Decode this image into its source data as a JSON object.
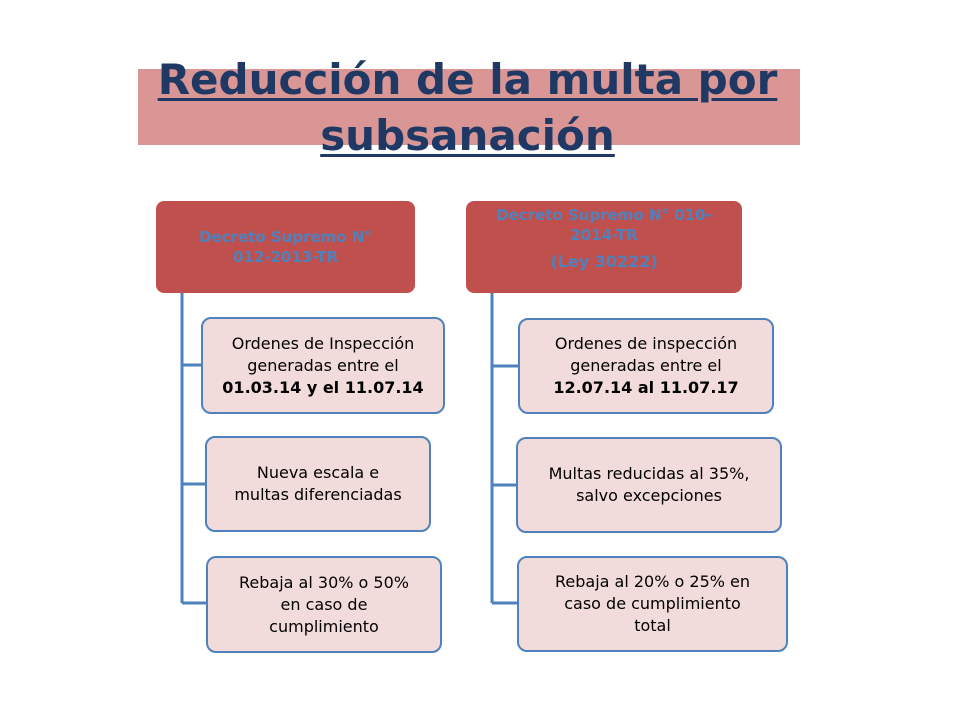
{
  "title": {
    "line1": "Reducción de la multa por",
    "line2": "subsanación"
  },
  "left": {
    "header": {
      "line1": "Decreto Supremo N°",
      "line2": "012-2013-TR"
    },
    "boxes": [
      {
        "line1": "Ordenes de Inspección",
        "line2": "generadas entre el",
        "line3": "01.03.14 y el 11.07.14"
      },
      {
        "line1": "Nueva escala e",
        "line2": "multas diferenciadas"
      },
      {
        "line1": "Rebaja al 30% o 50%",
        "line2": "en caso de",
        "line3": "cumplimiento"
      }
    ]
  },
  "right": {
    "header": {
      "line1": "Decreto Supremo N° 010-",
      "line2": "2014-TR",
      "line3": "(Ley 30222)"
    },
    "boxes": [
      {
        "line1": "Ordenes de inspección",
        "line2": "generadas entre el",
        "line3": "12.07.14 al 11.07.17"
      },
      {
        "line1": "Multas reducidas al 35%,",
        "line2": "salvo excepciones"
      },
      {
        "line1": "Rebaja al 20% o 25% en",
        "line2": "caso de cumplimiento",
        "line3": "total"
      }
    ]
  },
  "colors": {
    "title_band": "#d99694",
    "title_text": "#1f3864",
    "header_fill": "#c0504d",
    "header_text": "#4f81bd",
    "box_fill": "#f2dcdb",
    "box_border": "#4f81bd",
    "connector": "#4f81bd"
  }
}
